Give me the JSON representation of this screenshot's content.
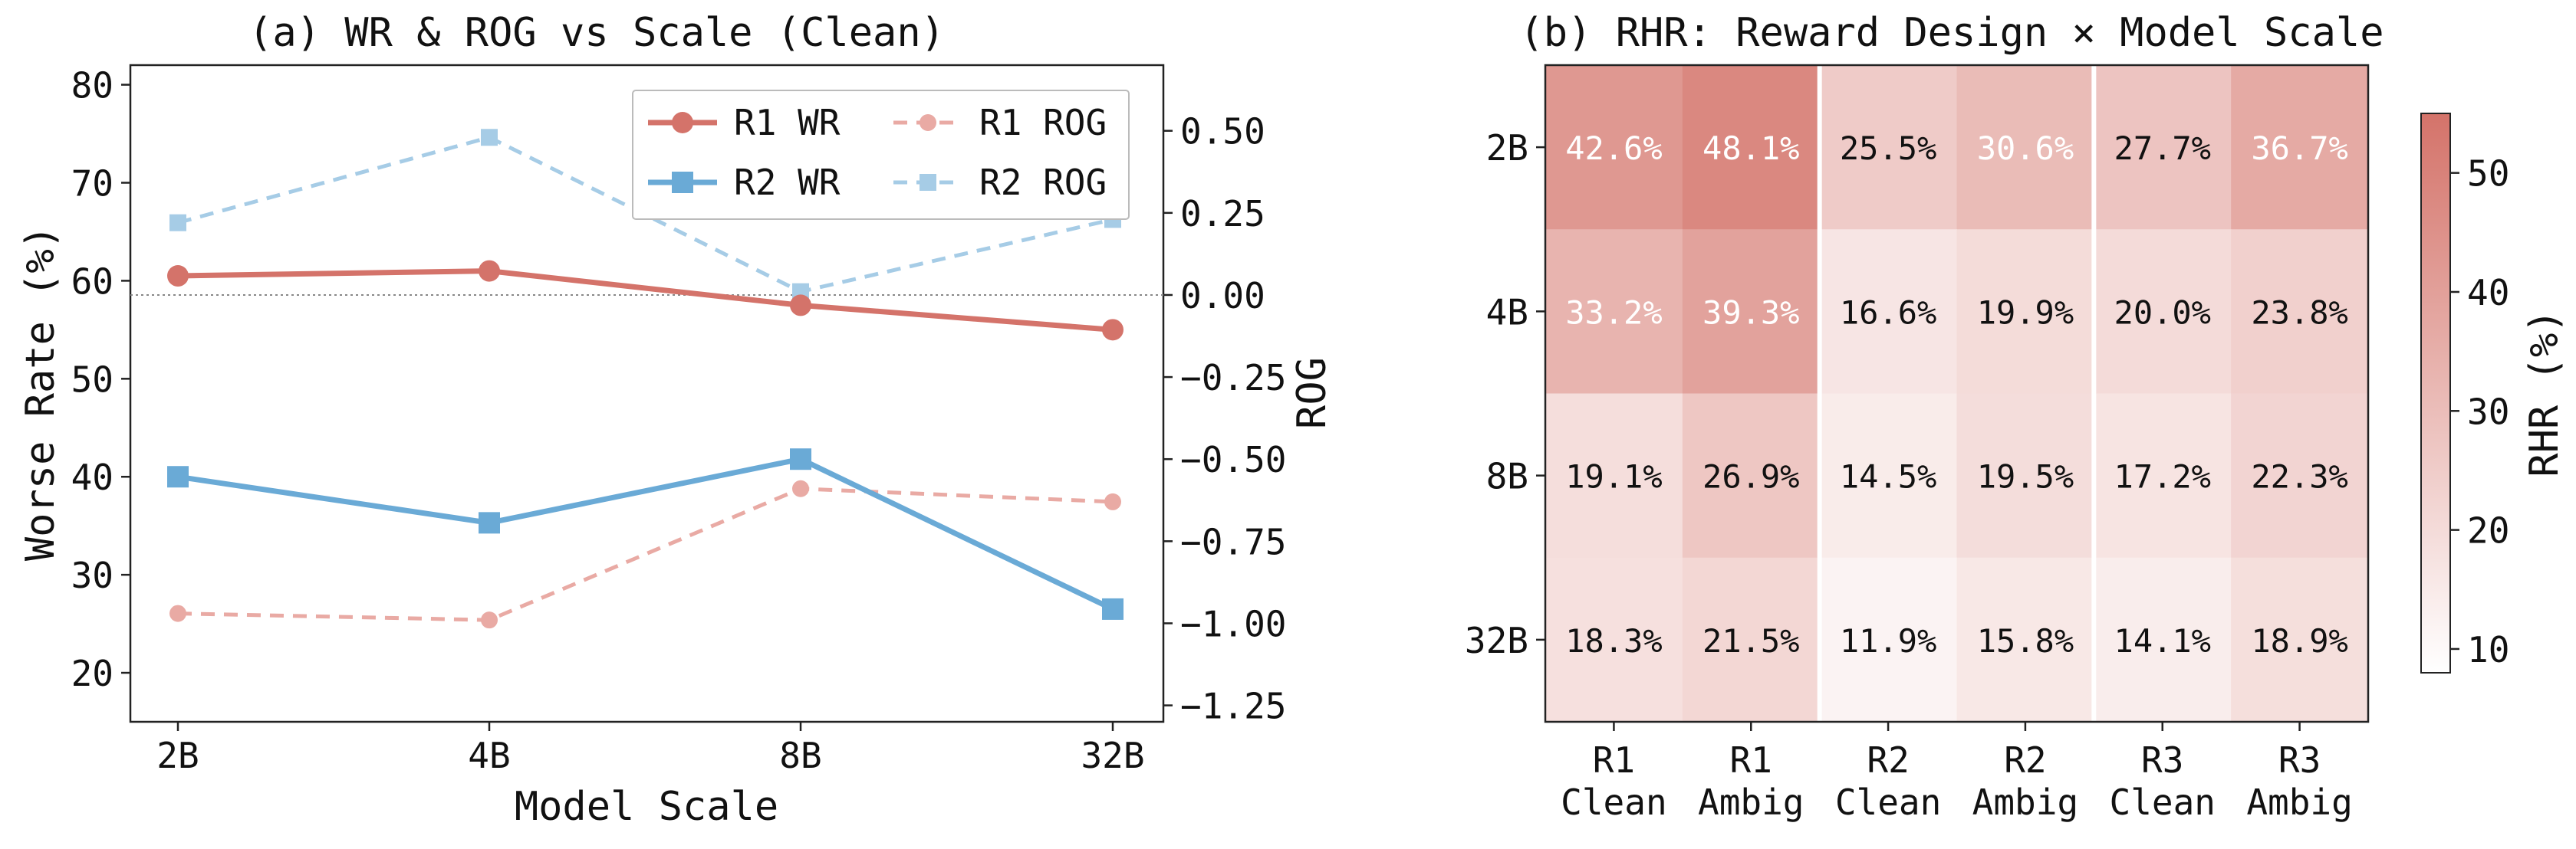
{
  "chart_data": [
    {
      "type": "line",
      "title": "(a) WR & ROG vs Scale (Clean)",
      "xlabel": "Model Scale",
      "ylabel": "Worse Rate (%)",
      "y2label": "ROG",
      "categories": [
        "2B",
        "4B",
        "8B",
        "32B"
      ],
      "ylim": [
        15,
        82
      ],
      "y2lim": [
        -1.3,
        0.7
      ],
      "yticks": [
        "20",
        "30",
        "40",
        "50",
        "60",
        "70",
        "80"
      ],
      "y2ticks": [
        "0.50",
        "0.25",
        "0.00",
        "−0.25",
        "−0.50",
        "−0.75",
        "−1.00",
        "−1.25"
      ],
      "reference_line_y2": 0.0,
      "legend_position": "top-right",
      "series": [
        {
          "name": "R1 WR",
          "axis": "left",
          "style": "solid",
          "marker": "circle",
          "color": "#d4736a",
          "values": [
            60.5,
            61.0,
            57.5,
            55.0
          ]
        },
        {
          "name": "R2 WR",
          "axis": "left",
          "style": "solid",
          "marker": "square",
          "color": "#6aaad6",
          "values": [
            40.0,
            35.3,
            41.8,
            26.5
          ]
        },
        {
          "name": "R1 ROG",
          "axis": "right",
          "style": "dashed",
          "marker": "circle",
          "color": "#e9aaa4",
          "values": [
            -0.97,
            -0.99,
            -0.59,
            -0.63
          ]
        },
        {
          "name": "R2 ROG",
          "axis": "right",
          "style": "dashed",
          "marker": "square",
          "color": "#a6cce6",
          "values": [
            0.22,
            0.48,
            0.01,
            0.23
          ]
        }
      ]
    },
    {
      "type": "heatmap",
      "title": "(b) RHR: Reward Design × Model Scale",
      "rows": [
        "2B",
        "4B",
        "8B",
        "32B"
      ],
      "columns": [
        [
          "R1",
          "Clean"
        ],
        [
          "R1",
          "Ambig"
        ],
        [
          "R2",
          "Clean"
        ],
        [
          "R2",
          "Ambig"
        ],
        [
          "R3",
          "Clean"
        ],
        [
          "R3",
          "Ambig"
        ]
      ],
      "values": [
        [
          42.6,
          48.1,
          25.5,
          30.6,
          27.7,
          36.7
        ],
        [
          33.2,
          39.3,
          16.6,
          19.9,
          20.0,
          23.8
        ],
        [
          19.1,
          26.9,
          14.5,
          19.5,
          17.2,
          22.3
        ],
        [
          18.3,
          21.5,
          11.9,
          15.8,
          14.1,
          18.9
        ]
      ],
      "labels": [
        [
          "42.6%",
          "48.1%",
          "25.5%",
          "30.6%",
          "27.7%",
          "36.7%"
        ],
        [
          "33.2%",
          "39.3%",
          "16.6%",
          "19.9%",
          "20.0%",
          "23.8%"
        ],
        [
          "19.1%",
          "26.9%",
          "14.5%",
          "19.5%",
          "17.2%",
          "22.3%"
        ],
        [
          "18.3%",
          "21.5%",
          "11.9%",
          "15.8%",
          "14.1%",
          "18.9%"
        ]
      ],
      "colorbar": {
        "label": "RHR (%)",
        "min": 8,
        "max": 55,
        "ticks": [
          "10",
          "20",
          "30",
          "40",
          "50"
        ],
        "color_low": "#ffffff",
        "color_high": "#d4736a"
      }
    }
  ]
}
